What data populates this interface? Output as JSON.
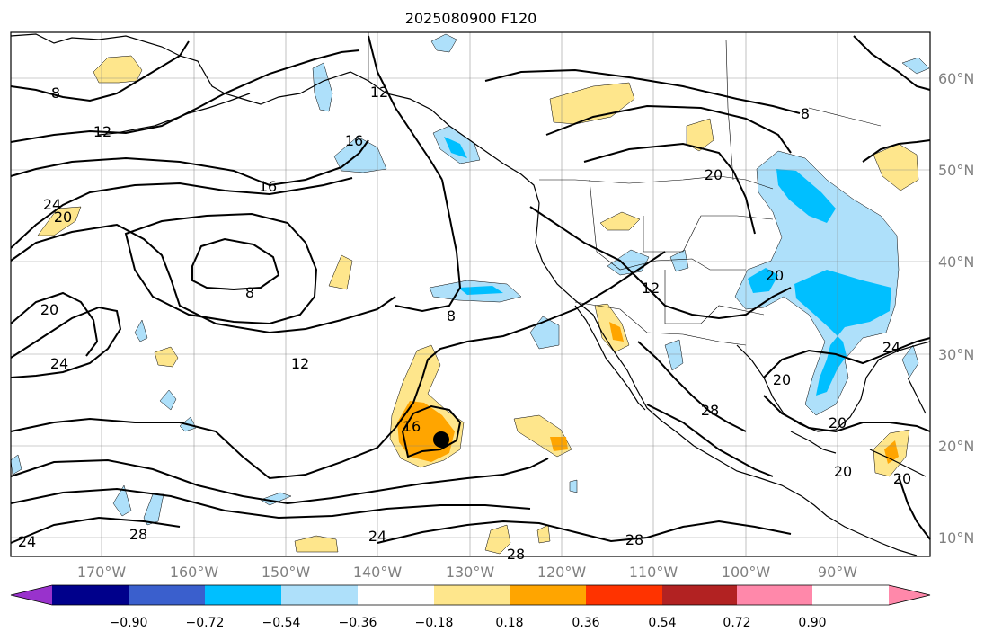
{
  "title": "2025080900 F120",
  "map": {
    "lat_labels": [
      "60°N",
      "50°N",
      "40°N",
      "30°N",
      "20°N",
      "10°N"
    ],
    "lon_labels": [
      "170°W",
      "160°W",
      "150°W",
      "140°W",
      "130°W",
      "120°W",
      "110°W",
      "100°W",
      "90°W"
    ],
    "contour_labels": [
      "8",
      "12",
      "16",
      "20",
      "24",
      "8",
      "12",
      "16",
      "8",
      "20",
      "24",
      "20",
      "8",
      "12",
      "16",
      "24",
      "28",
      "28",
      "24",
      "28",
      "12",
      "20",
      "28",
      "20",
      "20",
      "24",
      "20",
      "20"
    ],
    "storm_center_marker": "filled-circle"
  },
  "colorbar": {
    "colors": [
      "#9932cc",
      "#00008b",
      "#3a5fcd",
      "#00bfff",
      "#aee0fa",
      "#ffffff",
      "#fee68c",
      "#ffa500",
      "#ff3300",
      "#b22222",
      "#ff88aa"
    ],
    "tick_labels": [
      "−0.90",
      "−0.72",
      "−0.54",
      "−0.36",
      "−0.18",
      "0.18",
      "0.36",
      "0.54",
      "0.72",
      "0.90"
    ]
  }
}
